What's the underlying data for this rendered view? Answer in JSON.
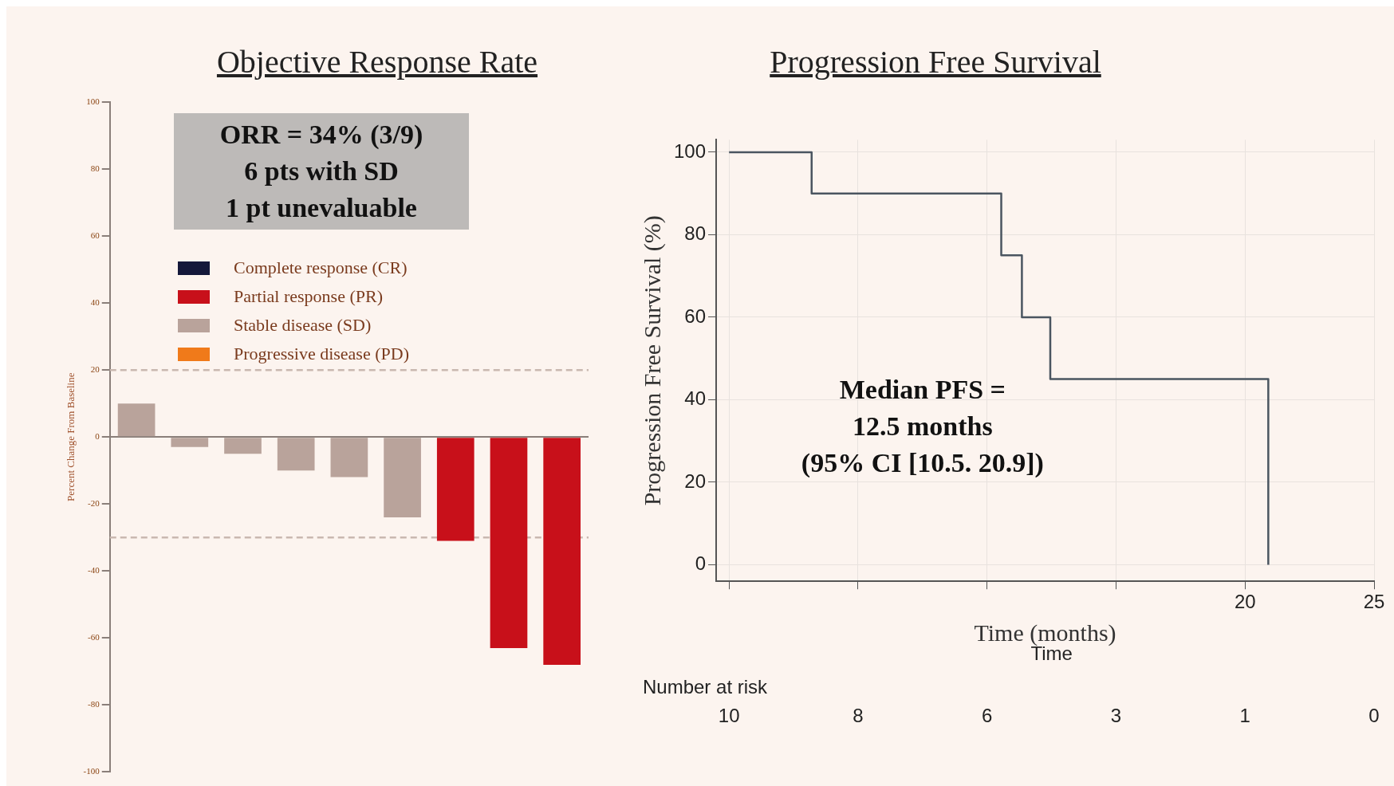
{
  "chart_data": [
    {
      "type": "bar",
      "title": "Objective Response Rate",
      "ylabel": "Percent Change From Baseline",
      "categories": [
        null,
        null,
        null,
        null,
        null,
        null,
        null,
        null,
        null
      ],
      "stacked": true,
      "series": [
        {
          "name": "Complete response (CR)",
          "color": "#14183a",
          "values": [
            null,
            null,
            null,
            null,
            null,
            null,
            null,
            null,
            null
          ]
        },
        {
          "name": "Partial response (PR)",
          "color": "#c8101a",
          "values": [
            null,
            null,
            null,
            null,
            null,
            null,
            -31,
            -63,
            -68
          ]
        },
        {
          "name": "Stable disease (SD)",
          "color": "#b9a39b",
          "values": [
            10,
            -3,
            -5,
            -10,
            -12,
            -24,
            null,
            null,
            null
          ]
        },
        {
          "name": "Progressive disease (PD)",
          "color": "#f07a1a",
          "values": [
            null,
            null,
            null,
            null,
            null,
            null,
            null,
            null,
            null
          ]
        }
      ],
      "ylim": [
        -100,
        100
      ],
      "yticks": [
        -100,
        -80,
        -60,
        -40,
        -20,
        0,
        20,
        40,
        60,
        80,
        100
      ],
      "tick_labels": "y",
      "legend": "top left",
      "grid": false,
      "ref_lines": [
        {
          "axis": "y",
          "value": 20,
          "color": "#c9b8b0",
          "line_style": "dashed"
        },
        {
          "axis": "y",
          "value": -30,
          "color": "#c9b8b0",
          "line_style": "dashed"
        }
      ],
      "annotations": [
        "ORR = 34% (3/9)",
        "6 pts with SD",
        "1 pt unevaluable"
      ]
    },
    {
      "type": "step",
      "title": "Progression Free Survival",
      "xlabel": "Time (months)",
      "ylabel": "Progression Free Survival (%)",
      "x": [
        0,
        3.2,
        10.55,
        11.35,
        12.45,
        20.9
      ],
      "values": [
        100,
        90,
        75,
        60,
        45,
        0
      ],
      "color": "#4a5560",
      "xlim": [
        -0.5,
        25
      ],
      "xticks": [
        {
          "value": 0,
          "label": null
        },
        {
          "value": 5,
          "label": null
        },
        {
          "value": 10,
          "label": null
        },
        {
          "value": 15,
          "label": null
        },
        20,
        25
      ],
      "ylim": [
        -4,
        103
      ],
      "yticks": [
        0,
        20,
        40,
        60,
        80,
        100
      ],
      "grid": true,
      "marker": "none",
      "line_style": "solid",
      "annotations": [
        "Median PFS =",
        "12.5 months",
        "(95% CI [10.5. 20.9])",
        "Time",
        "Number at risk",
        "10",
        "8",
        "6",
        "3",
        "1",
        "0"
      ]
    }
  ]
}
